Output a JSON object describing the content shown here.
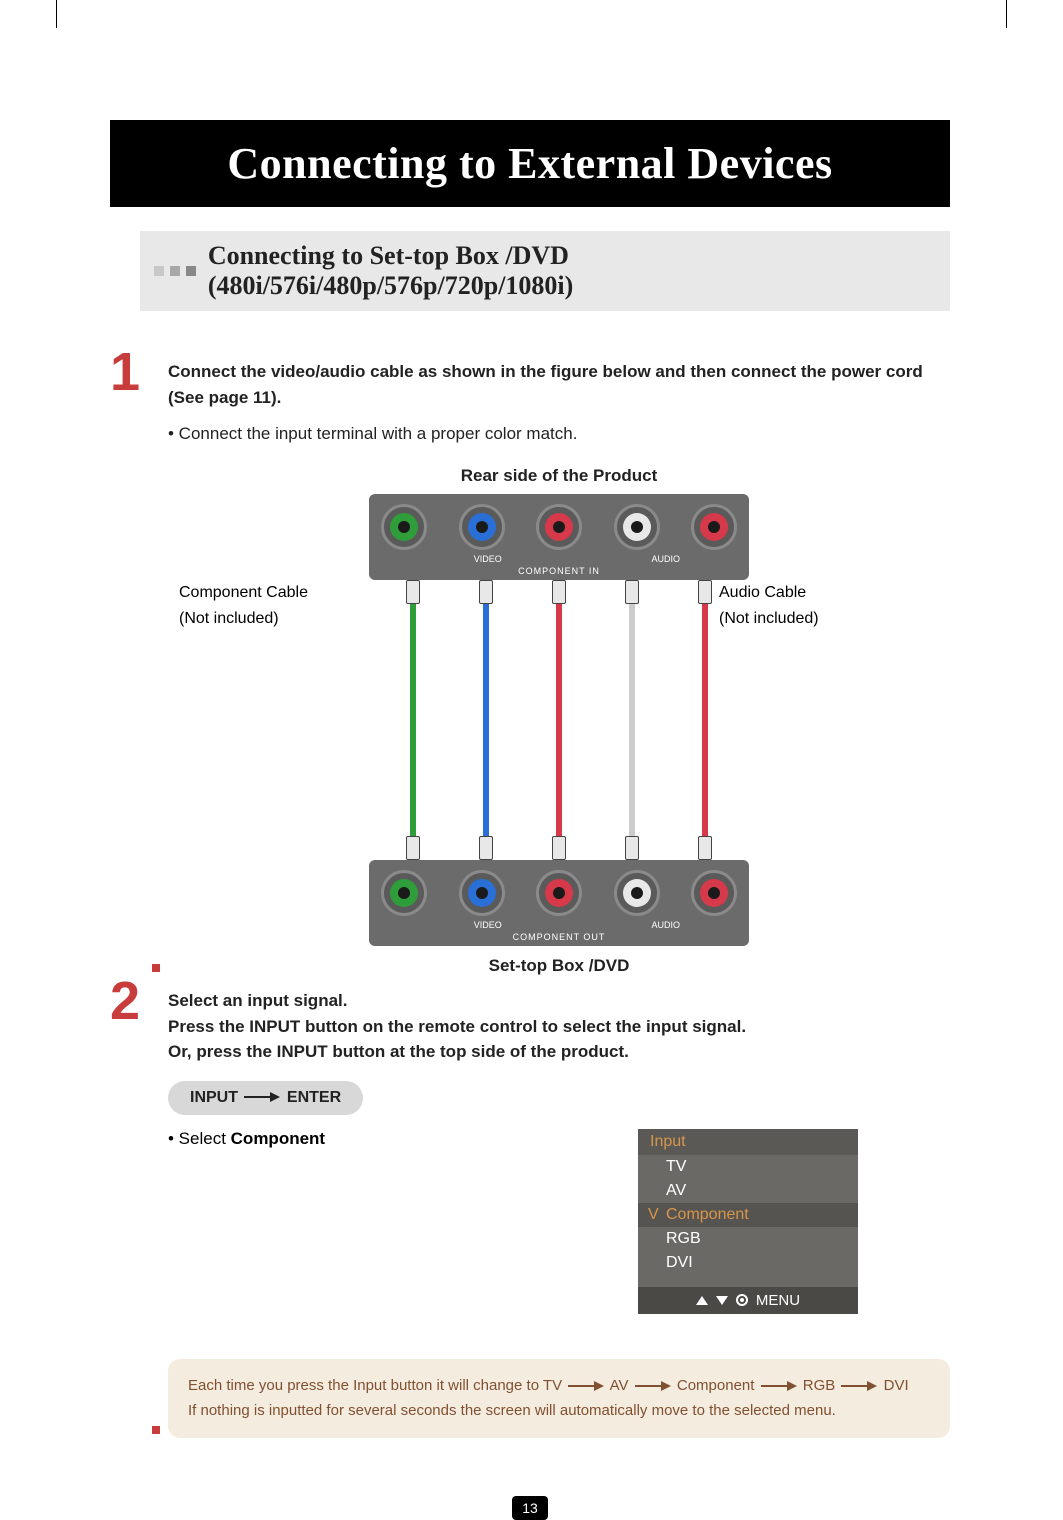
{
  "page_number": "13",
  "title": "Connecting to External Devices",
  "section_title": "Connecting to Set-top Box /DVD (480i/576i/480p/576p/720p/1080i)",
  "section_markers": [
    "#c8c8c8",
    "#a8a8a8",
    "#888888"
  ],
  "step1": {
    "number": "1",
    "heading": "Connect the video/audio cable as shown in the figure below and then connect the power cord (See page 11).",
    "sub": "• Connect the input terminal with a proper color match.",
    "caption_top": "Rear side of the Product",
    "caption_bottom": "Set-top Box /DVD",
    "panel_top": {
      "video_label": "VIDEO",
      "audio_label": "AUDIO",
      "main_label": "COMPONENT IN",
      "jacks": [
        {
          "color": "#2f9e3a"
        },
        {
          "color": "#2a6fd6"
        },
        {
          "color": "#d63a4a"
        },
        {
          "color": "#e8e8e8"
        },
        {
          "color": "#d63a4a"
        }
      ]
    },
    "panel_bottom": {
      "video_label": "VIDEO",
      "audio_label": "AUDIO",
      "main_label": "COMPONENT OUT",
      "jacks": [
        {
          "color": "#2f9e3a"
        },
        {
          "color": "#2a6fd6"
        },
        {
          "color": "#d63a4a"
        },
        {
          "color": "#e8e8e8"
        },
        {
          "color": "#d63a4a"
        }
      ]
    },
    "cables": [
      {
        "color": "#2f9e3a"
      },
      {
        "color": "#2a6fd6"
      },
      {
        "color": "#d63a4a"
      },
      {
        "color": "#cccccc"
      },
      {
        "color": "#d63a4a"
      }
    ],
    "cable_label_left_1": "Component Cable",
    "cable_label_left_2": "(Not included)",
    "cable_label_right_1": "Audio Cable",
    "cable_label_right_2": "(Not included)"
  },
  "step2": {
    "number": "2",
    "heading": "Select an input signal.",
    "line2": "Press the INPUT button on the remote control to select the input signal.",
    "line3": "Or, press the INPUT button at the top side of the product.",
    "pill_left": "INPUT",
    "pill_right": "ENTER",
    "select_prefix": "• Select ",
    "select_bold": "Component",
    "menu": {
      "header": "Input",
      "items": [
        "TV",
        "AV",
        "Component",
        "RGB",
        "DVI"
      ],
      "selected_index": 2,
      "footer": "MENU",
      "header_color": "#d8954a",
      "selected_color": "#d8954a",
      "bg_color": "#6a6966"
    }
  },
  "note": {
    "line1_prefix": "Each time you press the Input button it will change to TV",
    "seq": [
      "AV",
      "Component",
      "RGB",
      "DVI"
    ],
    "line2": "If nothing is inputted for several seconds the screen will automatically move to the selected menu.",
    "bg_color": "#f5ece0",
    "text_color": "#805030"
  },
  "colors": {
    "accent_red": "#c83c3c",
    "title_bg": "#000000",
    "section_bg": "#e8e8e8",
    "panel_bg": "#6b6b6b"
  }
}
